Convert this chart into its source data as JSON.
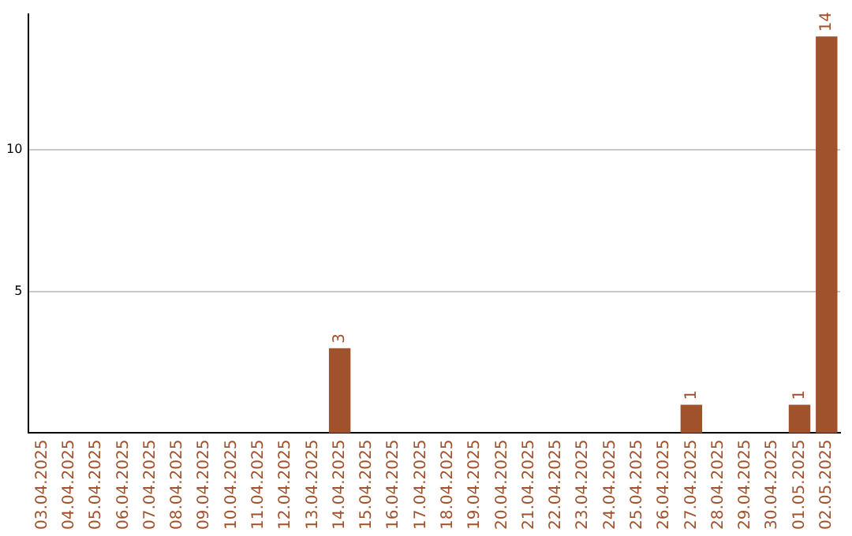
{
  "chart_data": {
    "type": "bar",
    "categories": [
      "03.04.2025",
      "04.04.2025",
      "05.04.2025",
      "06.04.2025",
      "07.04.2025",
      "08.04.2025",
      "09.04.2025",
      "10.04.2025",
      "11.04.2025",
      "12.04.2025",
      "13.04.2025",
      "14.04.2025",
      "15.04.2025",
      "16.04.2025",
      "17.04.2025",
      "18.04.2025",
      "19.04.2025",
      "20.04.2025",
      "21.04.2025",
      "22.04.2025",
      "23.04.2025",
      "24.04.2025",
      "25.04.2025",
      "26.04.2025",
      "27.04.2025",
      "28.04.2025",
      "29.04.2025",
      "30.04.2025",
      "01.05.2025",
      "02.05.2025"
    ],
    "values": [
      0,
      0,
      0,
      0,
      0,
      0,
      0,
      0,
      0,
      0,
      0,
      3,
      0,
      0,
      0,
      0,
      0,
      0,
      0,
      0,
      0,
      0,
      0,
      0,
      1,
      0,
      0,
      0,
      1,
      14
    ],
    "value_labels": [
      null,
      null,
      null,
      null,
      null,
      null,
      null,
      null,
      null,
      null,
      null,
      "3",
      null,
      null,
      null,
      null,
      null,
      null,
      null,
      null,
      null,
      null,
      null,
      null,
      "1",
      null,
      null,
      null,
      "1",
      "14"
    ],
    "color": "#a0522d",
    "ylim": [
      0,
      14.8
    ],
    "yticks": [
      5,
      10
    ],
    "grid": "y"
  }
}
